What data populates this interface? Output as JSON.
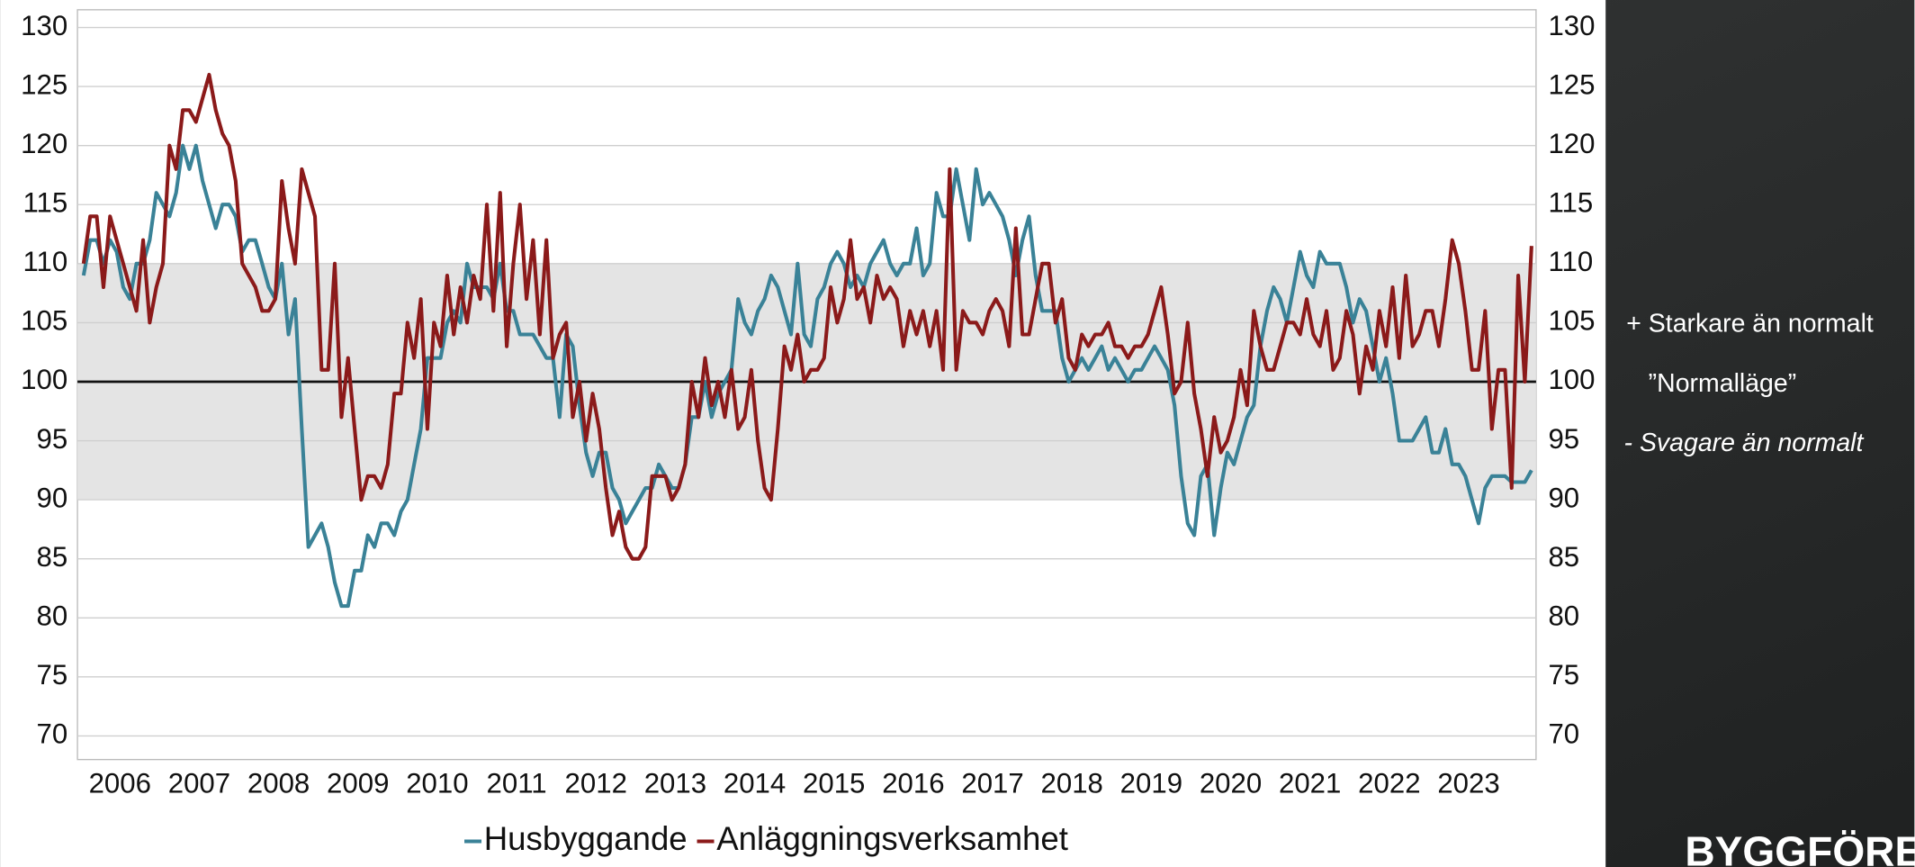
{
  "chart_data": {
    "type": "line",
    "categories": [
      null,
      null,
      null,
      null,
      null,
      null,
      "2006",
      null,
      null,
      null,
      null,
      null,
      null,
      null,
      null,
      null,
      null,
      null,
      "2007",
      null,
      null,
      null,
      null,
      null,
      null,
      null,
      null,
      null,
      null,
      null,
      "2008",
      null,
      null,
      null,
      null,
      null,
      null,
      null,
      null,
      null,
      null,
      null,
      "2009",
      null,
      null,
      null,
      null,
      null,
      null,
      null,
      null,
      null,
      null,
      null,
      "2010",
      null,
      null,
      null,
      null,
      null,
      null,
      null,
      null,
      null,
      null,
      null,
      "2011",
      null,
      null,
      null,
      null,
      null,
      null,
      null,
      null,
      null,
      null,
      null,
      "2012",
      null,
      null,
      null,
      null,
      null,
      null,
      null,
      null,
      null,
      null,
      null,
      "2013",
      null,
      null,
      null,
      null,
      null,
      null,
      null,
      null,
      null,
      null,
      null,
      "2014",
      null,
      null,
      null,
      null,
      null,
      null,
      null,
      null,
      null,
      null,
      null,
      "2015",
      null,
      null,
      null,
      null,
      null,
      null,
      null,
      null,
      null,
      null,
      null,
      "2016",
      null,
      null,
      null,
      null,
      null,
      null,
      null,
      null,
      null,
      null,
      null,
      "2017",
      null,
      null,
      null,
      null,
      null,
      null,
      null,
      null,
      null,
      null,
      null,
      "2018",
      null,
      null,
      null,
      null,
      null,
      null,
      null,
      null,
      null,
      null,
      null,
      "2019",
      null,
      null,
      null,
      null,
      null,
      null,
      null,
      null,
      null,
      null,
      null,
      "2020",
      null,
      null,
      null,
      null,
      null,
      null,
      null,
      null,
      null,
      null,
      null,
      "2021",
      null,
      null,
      null,
      null,
      null,
      null,
      null,
      null,
      null,
      null,
      null,
      "2022",
      null,
      null,
      null,
      null,
      null,
      null,
      null,
      null,
      null,
      null,
      null,
      "2023",
      null,
      null,
      null,
      null,
      null,
      null,
      null,
      null,
      null
    ],
    "series": [
      {
        "name": "Husbyggande",
        "color": "#3a8297",
        "values": [
          109,
          112,
          112,
          110,
          112,
          111,
          108,
          107,
          110,
          110,
          112,
          116,
          115,
          114,
          116,
          120,
          118,
          120,
          117,
          115,
          113,
          115,
          115,
          114,
          111,
          112,
          112,
          110,
          108,
          107,
          110,
          104,
          107,
          96,
          86,
          87,
          88,
          86,
          83,
          81,
          81,
          84,
          84,
          87,
          86,
          88,
          88,
          87,
          89,
          90,
          93,
          96,
          102,
          102,
          102,
          105,
          106,
          105,
          110,
          108,
          108,
          108,
          107,
          110,
          106,
          106,
          104,
          104,
          104,
          103,
          102,
          102,
          97,
          104,
          103,
          98,
          94,
          92,
          94,
          94,
          91,
          90,
          88,
          89,
          90,
          91,
          91,
          93,
          92,
          91,
          91,
          93,
          97,
          97,
          100,
          97,
          99,
          100,
          101,
          107,
          105,
          104,
          106,
          107,
          109,
          108,
          106,
          104,
          110,
          104,
          103,
          107,
          108,
          110,
          111,
          110,
          108,
          109,
          108,
          110,
          111,
          112,
          110,
          109,
          110,
          110,
          113,
          109,
          110,
          116,
          114,
          114,
          118,
          115,
          112,
          118,
          115,
          116,
          115,
          114,
          112,
          109,
          112,
          114,
          109,
          106,
          106,
          106,
          102,
          100,
          101,
          102,
          101,
          102,
          103,
          101,
          102,
          101,
          100,
          101,
          101,
          102,
          103,
          102,
          101,
          98,
          92,
          88,
          87,
          92,
          93,
          87,
          91,
          94,
          93,
          95,
          97,
          98,
          103,
          106,
          108,
          107,
          105,
          108,
          111,
          109,
          108,
          111,
          110,
          110,
          110,
          108,
          105,
          107,
          106,
          103,
          100,
          102,
          99,
          95,
          95,
          95,
          96,
          97,
          94,
          94,
          96,
          93,
          93,
          92,
          90,
          88,
          91,
          92,
          92,
          92,
          91.5,
          91.5,
          91.5,
          92.5
        ]
      },
      {
        "name": "Anläggningsverksamhet",
        "color": "#8b1a1a",
        "values": [
          110,
          114,
          114,
          108,
          114,
          112,
          110,
          108,
          106,
          112,
          105,
          108,
          110,
          120,
          118,
          123,
          123,
          122,
          124,
          126,
          123,
          121,
          120,
          117,
          110,
          109,
          108,
          106,
          106,
          107,
          117,
          113,
          110,
          118,
          116,
          114,
          101,
          101,
          110,
          97,
          102,
          96,
          90,
          92,
          92,
          91,
          93,
          99,
          99,
          105,
          102,
          107,
          96,
          105,
          103,
          109,
          104,
          108,
          105,
          109,
          107,
          115,
          106,
          116,
          103,
          110,
          115,
          107,
          112,
          104,
          112,
          102,
          104,
          105,
          97,
          100,
          95,
          99,
          96,
          91,
          87,
          89,
          86,
          85,
          85,
          86,
          92,
          92,
          92,
          90,
          91,
          93,
          100,
          97,
          102,
          98,
          100,
          97,
          101,
          96,
          97,
          101,
          95,
          91,
          90,
          96,
          103,
          101,
          104,
          100,
          101,
          101,
          102,
          108,
          105,
          107,
          112,
          107,
          108,
          105,
          109,
          107,
          108,
          107,
          103,
          106,
          104,
          106,
          103,
          106,
          101,
          118,
          101,
          106,
          105,
          105,
          104,
          106,
          107,
          106,
          103,
          113,
          104,
          104,
          107,
          110,
          110,
          105,
          107,
          102,
          101,
          104,
          103,
          104,
          104,
          105,
          103,
          103,
          102,
          103,
          103,
          104,
          106,
          108,
          104,
          99,
          100,
          105,
          99,
          96,
          92,
          97,
          94,
          95,
          97,
          101,
          98,
          106,
          103,
          101,
          101,
          103,
          105,
          105,
          104,
          107,
          104,
          103,
          106,
          101,
          102,
          106,
          104,
          99,
          103,
          101,
          106,
          103,
          108,
          102,
          109,
          103,
          104,
          106,
          106,
          103,
          107,
          112,
          110,
          106,
          101,
          101,
          106,
          96,
          101,
          101,
          91,
          109,
          100,
          111.5
        ]
      }
    ],
    "ylim": [
      68,
      131.5
    ],
    "yticks": [
      70,
      75,
      80,
      85,
      90,
      95,
      100,
      105,
      110,
      115,
      120,
      125,
      130
    ],
    "grid": true,
    "band": [
      90,
      110
    ],
    "reference_line": 100,
    "annotations": [
      "+ Starkare än normalt",
      "”Normalläge”",
      "- Svagare än normalt"
    ],
    "logo": "BYGGFÖRETAGEN"
  }
}
